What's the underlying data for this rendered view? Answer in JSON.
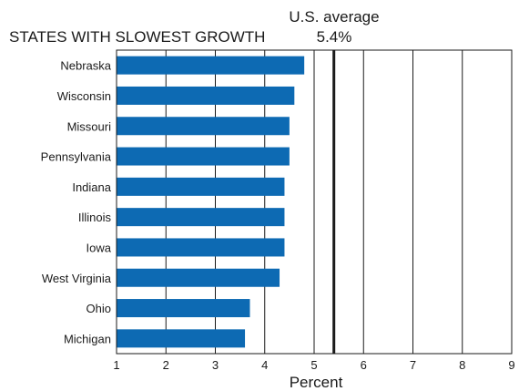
{
  "chart_data": {
    "type": "bar",
    "orientation": "horizontal",
    "title": "STATES WITH SLOWEST GROWTH",
    "xlabel": "Percent",
    "ylabel": "",
    "categories": [
      "Nebraska",
      "Wisconsin",
      "Missouri",
      "Pennsylvania",
      "Indiana",
      "Illinois",
      "Iowa",
      "West Virginia",
      "Ohio",
      "Michigan"
    ],
    "values": [
      4.8,
      4.6,
      4.5,
      4.5,
      4.4,
      4.4,
      4.4,
      4.3,
      3.7,
      3.6
    ],
    "xlim": [
      1,
      9
    ],
    "xticks": [
      "1",
      "2",
      "3",
      "4",
      "5",
      "6",
      "7",
      "8",
      "9"
    ],
    "grid": "vertical",
    "reference_line": {
      "label": "U.S. average",
      "value": 5.4,
      "value_label": "5.4%"
    },
    "colors": {
      "bar": "#0d6ab3",
      "grid": "#1a1a1a"
    }
  }
}
